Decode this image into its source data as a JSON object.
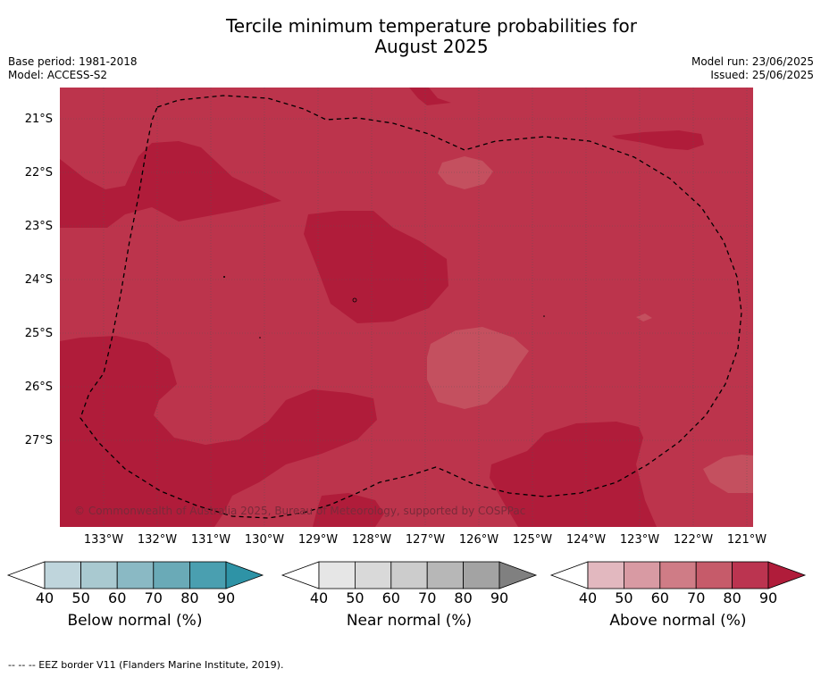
{
  "title_line1": "Tercile minimum temperature probabilities for",
  "title_line2": "August 2025",
  "meta_left": {
    "base_period": "Base period: 1981-2018",
    "model": "Model: ACCESS-S2"
  },
  "meta_right": {
    "model_run": "Model run: 23/06/2025",
    "issued": "Issued: 25/06/2025"
  },
  "lat_labels": [
    "21°S",
    "22°S",
    "23°S",
    "24°S",
    "25°S",
    "26°S",
    "27°S"
  ],
  "lon_labels": [
    "133°W",
    "132°W",
    "131°W",
    "130°W",
    "129°W",
    "128°W",
    "127°W",
    "126°W",
    "125°W",
    "124°W",
    "123°W",
    "122°W",
    "121°W"
  ],
  "copyright": "© Commonwealth of Australia 2025, Bureau of Meteorology, supported by COSPPac",
  "legends": [
    {
      "title": "Below normal (%)",
      "ticks": [
        "40",
        "50",
        "60",
        "70",
        "80",
        "90"
      ],
      "colors": [
        "#ffffff",
        "#bfd5dc",
        "#a9c9d0",
        "#8ab9c4",
        "#6aaab7",
        "#4a9fb0",
        "#2e93a6"
      ]
    },
    {
      "title": "Near normal (%)",
      "ticks": [
        "40",
        "50",
        "60",
        "70",
        "80",
        "90"
      ],
      "colors": [
        "#ffffff",
        "#e6e6e6",
        "#d9d9d9",
        "#cccccc",
        "#b7b7b7",
        "#a3a3a3",
        "#808080"
      ]
    },
    {
      "title": "Above normal (%)",
      "ticks": [
        "40",
        "50",
        "60",
        "70",
        "80",
        "90"
      ],
      "colors": [
        "#ffffff",
        "#e2b8bf",
        "#d89aa3",
        "#cf7c86",
        "#c65b6a",
        "#bb3450",
        "#b01c3a"
      ]
    }
  ],
  "map_colors": {
    "base": "#bc344c",
    "dark": "#b01c3a",
    "light": "#c4505f"
  },
  "footer": "--  --  -- EEZ border V11 (Flanders Marine Institute, 2019)."
}
